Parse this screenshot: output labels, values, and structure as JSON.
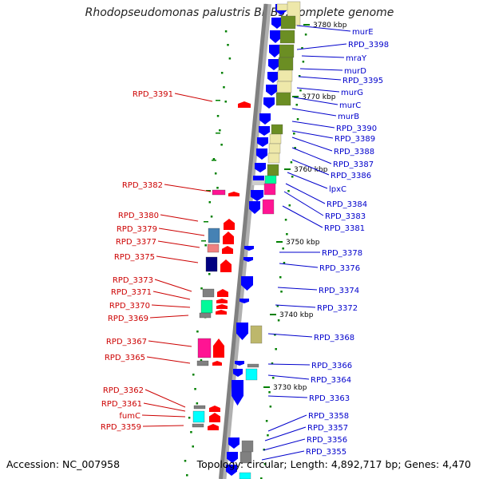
{
  "title": "Rhodopseudomonas palustris BisB5, complete genome",
  "accession_label": "Accession: NC_007958",
  "topology_label": "Topology: circular; Length: 4,892,717 bp; Genes: 4,470",
  "colors": {
    "forward_strand": "#0000ff",
    "reverse_strand": "#ff0000",
    "backbone": "#808080",
    "label_blue": "#0000cc",
    "label_red": "#cc0000",
    "tick_green": "#008000",
    "cog_olive": "#6b8e23",
    "cog_khaki": "#eee8aa",
    "cog_magenta": "#ff1493",
    "cog_cyan": "#00ffff",
    "cog_gray": "#808080",
    "cog_steelblue": "#4682b4",
    "cog_navy": "#000080",
    "cog_pink": "#f08080",
    "cog_springgreen": "#00fa9a",
    "cog_tan": "#bdb76b"
  },
  "scale_ticks": [
    "3780 kbp",
    "3770 kbp",
    "3760 kbp",
    "3750 kbp",
    "3740 kbp",
    "3730 kbp"
  ],
  "right_labels": [
    "murE",
    "RPD_3398",
    "mraY",
    "murD",
    "RPD_3395",
    "murG",
    "murC",
    "murB",
    "RPD_3390",
    "RPD_3389",
    "RPD_3388",
    "RPD_3387",
    "RPD_3386",
    "lpxC",
    "RPD_3384",
    "RPD_3383",
    "RPD_3381",
    "RPD_3378",
    "RPD_3376",
    "RPD_3374",
    "RPD_3372",
    "RPD_3368",
    "RPD_3366",
    "RPD_3364",
    "RPD_3363",
    "RPD_3358",
    "RPD_3357",
    "RPD_3356",
    "RPD_3355"
  ],
  "left_labels": [
    "RPD_3391",
    "RPD_3382",
    "RPD_3380",
    "RPD_3379",
    "RPD_3377",
    "RPD_3375",
    "RPD_3373",
    "RPD_3371",
    "RPD_3370",
    "RPD_3369",
    "RPD_3367",
    "RPD_3365",
    "RPD_3362",
    "RPD_3361",
    "fumC",
    "RPD_3359"
  ]
}
